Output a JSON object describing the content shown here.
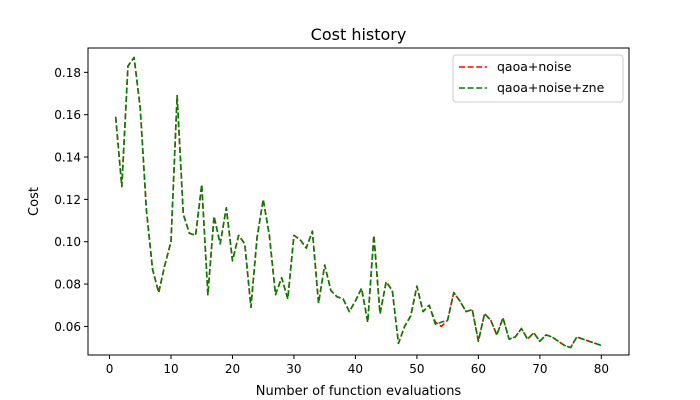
{
  "chart_data": {
    "type": "line",
    "title": "Cost history",
    "xlabel": "Number of function evaluations",
    "ylabel": "Cost",
    "xlim": [
      -3.5,
      84.5
    ],
    "ylim": [
      0.0465,
      0.1915
    ],
    "xticks": [
      0,
      10,
      20,
      30,
      40,
      50,
      60,
      70,
      80
    ],
    "yticks": [
      0.06,
      0.08,
      0.1,
      0.12,
      0.14,
      0.16,
      0.18
    ],
    "ytick_labels": [
      "0.06",
      "0.08",
      "0.10",
      "0.12",
      "0.14",
      "0.16",
      "0.18"
    ],
    "grid": false,
    "legend_position": "top-right",
    "series": [
      {
        "name": "qaoa+noise",
        "color": "#ff0000",
        "style": "dashed",
        "x": [
          1,
          2,
          3,
          4,
          5,
          6,
          7,
          8,
          9,
          10,
          11,
          12,
          13,
          14,
          15,
          16,
          17,
          18,
          19,
          20,
          21,
          22,
          23,
          24,
          25,
          26,
          27,
          28,
          29,
          30,
          31,
          32,
          33,
          34,
          35,
          36,
          37,
          38,
          39,
          40,
          41,
          42,
          43,
          44,
          45,
          46,
          47,
          48,
          49,
          50,
          51,
          52,
          53,
          54,
          55,
          56,
          57,
          58,
          59,
          60,
          61,
          62,
          63,
          64,
          65,
          66,
          67,
          68,
          69,
          70,
          71,
          72,
          73,
          74,
          75,
          76,
          77,
          78,
          79,
          80
        ],
        "y": [
          0.159,
          0.126,
          0.183,
          0.187,
          0.163,
          0.115,
          0.087,
          0.076,
          0.089,
          0.1,
          0.169,
          0.113,
          0.104,
          0.103,
          0.127,
          0.075,
          0.112,
          0.099,
          0.116,
          0.091,
          0.103,
          0.099,
          0.069,
          0.102,
          0.12,
          0.103,
          0.075,
          0.083,
          0.073,
          0.103,
          0.101,
          0.097,
          0.105,
          0.071,
          0.089,
          0.077,
          0.074,
          0.073,
          0.067,
          0.072,
          0.078,
          0.062,
          0.103,
          0.066,
          0.081,
          0.077,
          0.052,
          0.06,
          0.065,
          0.079,
          0.067,
          0.07,
          0.062,
          0.06,
          0.063,
          0.076,
          0.072,
          0.067,
          0.068,
          0.053,
          0.066,
          0.063,
          0.056,
          0.064,
          0.054,
          0.055,
          0.059,
          0.054,
          0.057,
          0.053,
          0.056,
          0.055,
          0.053,
          0.051,
          0.05,
          0.055,
          0.054,
          0.053,
          0.052,
          0.051
        ]
      },
      {
        "name": "qaoa+noise+zne",
        "color": "#008000",
        "style": "dashed",
        "x": [
          1,
          2,
          3,
          4,
          5,
          6,
          7,
          8,
          9,
          10,
          11,
          12,
          13,
          14,
          15,
          16,
          17,
          18,
          19,
          20,
          21,
          22,
          23,
          24,
          25,
          26,
          27,
          28,
          29,
          30,
          31,
          32,
          33,
          34,
          35,
          36,
          37,
          38,
          39,
          40,
          41,
          42,
          43,
          44,
          45,
          46,
          47,
          48,
          49,
          50,
          51,
          52,
          53,
          54,
          55,
          56,
          57,
          58,
          59,
          60,
          61,
          62,
          63,
          64,
          65,
          66,
          67,
          68,
          69,
          70,
          71,
          72,
          73,
          74,
          75,
          76,
          77,
          78,
          79,
          80
        ],
        "y": [
          0.159,
          0.126,
          0.183,
          0.187,
          0.163,
          0.115,
          0.087,
          0.076,
          0.089,
          0.1,
          0.169,
          0.113,
          0.104,
          0.103,
          0.127,
          0.075,
          0.112,
          0.099,
          0.116,
          0.091,
          0.103,
          0.099,
          0.069,
          0.102,
          0.12,
          0.103,
          0.075,
          0.083,
          0.073,
          0.103,
          0.101,
          0.097,
          0.105,
          0.071,
          0.089,
          0.077,
          0.074,
          0.073,
          0.067,
          0.072,
          0.078,
          0.062,
          0.103,
          0.066,
          0.081,
          0.077,
          0.052,
          0.06,
          0.065,
          0.079,
          0.067,
          0.07,
          0.061,
          0.062,
          0.063,
          0.076,
          0.072,
          0.067,
          0.068,
          0.053,
          0.066,
          0.063,
          0.056,
          0.064,
          0.054,
          0.055,
          0.059,
          0.054,
          0.057,
          0.053,
          0.056,
          0.055,
          0.053,
          0.051,
          0.05,
          0.055,
          0.054,
          0.053,
          0.052,
          0.051
        ]
      }
    ]
  }
}
